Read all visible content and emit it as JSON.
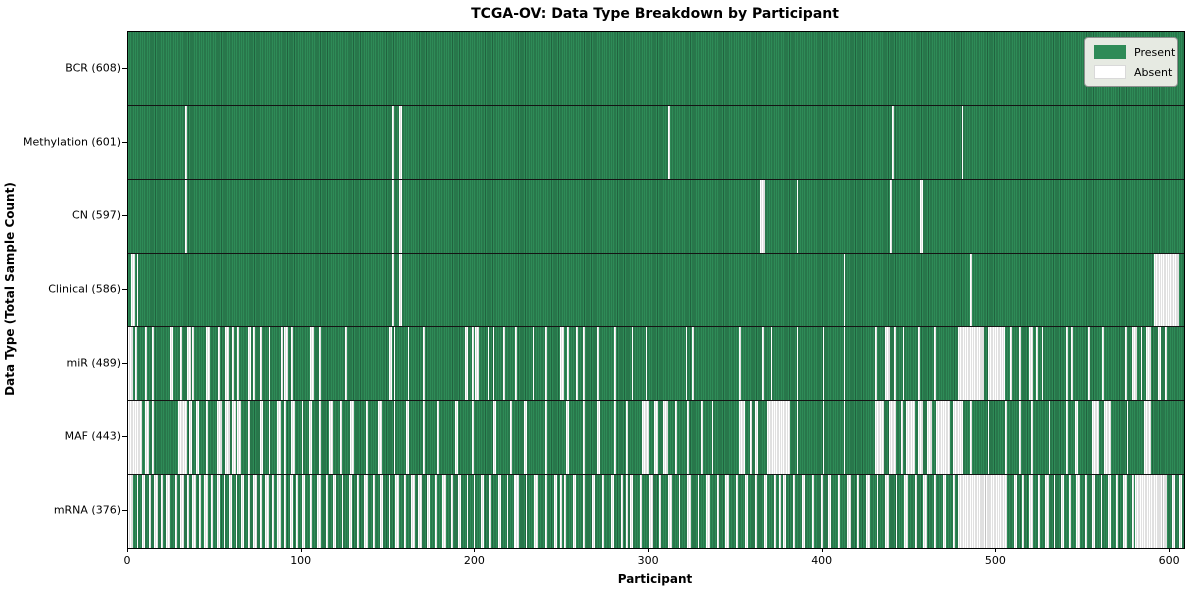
{
  "title": "TCGA-OV: Data Type Breakdown by Participant",
  "xlabel": "Participant",
  "ylabel": "Data Type (Total Sample Count)",
  "legend_labels": [
    "Present",
    "Absent"
  ],
  "colors": {
    "present": "#2e8b57",
    "present_edge": "#21633f",
    "absent": "#ffffff",
    "absent_edge": "#c2c2c2",
    "legend_bg": "#e6eae2"
  },
  "chart_data": {
    "type": "heatmap",
    "title": "TCGA-OV: Data Type Breakdown by Participant",
    "xlabel": "Participant",
    "ylabel": "Data Type (Total Sample Count)",
    "legend": [
      "Present",
      "Absent"
    ],
    "legend_position": "upper right",
    "x_ticks": [
      0,
      100,
      200,
      300,
      400,
      500,
      600
    ],
    "x_range": [
      0,
      608
    ],
    "n_participants": 608,
    "cell_states": [
      "present",
      "absent"
    ],
    "rows": [
      {
        "name": "BCR",
        "label": "BCR (608)",
        "present_count": 608,
        "absent_count": 0,
        "absent_segments": []
      },
      {
        "name": "Methylation",
        "label": "Methylation (601)",
        "present_count": 601,
        "absent_count": 7,
        "absent_segments": [
          [
            33,
            33
          ],
          [
            152,
            152
          ],
          [
            156,
            157
          ],
          [
            311,
            311
          ],
          [
            440,
            440
          ],
          [
            480,
            480
          ]
        ]
      },
      {
        "name": "CN",
        "label": "CN (597)",
        "present_count": 597,
        "absent_count": 11,
        "absent_segments": [
          [
            33,
            33
          ],
          [
            152,
            152
          ],
          [
            156,
            157
          ],
          [
            364,
            366
          ],
          [
            385,
            385
          ],
          [
            439,
            439
          ],
          [
            456,
            457
          ]
        ]
      },
      {
        "name": "Clinical",
        "label": "Clinical (586)",
        "present_count": 586,
        "absent_count": 22,
        "absent_segments": [
          [
            2,
            3
          ],
          [
            5,
            5
          ],
          [
            152,
            152
          ],
          [
            156,
            157
          ],
          [
            412,
            412
          ],
          [
            485,
            485
          ],
          [
            591,
            604
          ]
        ]
      },
      {
        "name": "miR",
        "label": "miR (489)",
        "present_count": 489,
        "absent_count": 119,
        "absent_segments": [
          [
            0,
            2
          ],
          [
            4,
            4
          ],
          [
            10,
            10
          ],
          [
            14,
            14
          ],
          [
            24,
            25
          ],
          [
            30,
            30
          ],
          [
            34,
            35
          ],
          [
            37,
            37
          ],
          [
            45,
            46
          ],
          [
            52,
            52
          ],
          [
            56,
            57
          ],
          [
            60,
            60
          ],
          [
            63,
            63
          ],
          [
            69,
            70
          ],
          [
            72,
            72
          ],
          [
            76,
            76
          ],
          [
            81,
            81
          ],
          [
            88,
            88
          ],
          [
            90,
            91
          ],
          [
            94,
            94
          ],
          [
            105,
            106
          ],
          [
            110,
            110
          ],
          [
            125,
            125
          ],
          [
            150,
            151
          ],
          [
            153,
            153
          ],
          [
            161,
            161
          ],
          [
            170,
            170
          ],
          [
            194,
            195
          ],
          [
            198,
            198
          ],
          [
            200,
            201
          ],
          [
            207,
            207
          ],
          [
            210,
            210
          ],
          [
            216,
            216
          ],
          [
            223,
            223
          ],
          [
            233,
            233
          ],
          [
            240,
            240
          ],
          [
            249,
            250
          ],
          [
            253,
            253
          ],
          [
            258,
            258
          ],
          [
            262,
            262
          ],
          [
            270,
            270
          ],
          [
            280,
            280
          ],
          [
            290,
            290
          ],
          [
            298,
            298
          ],
          [
            321,
            321
          ],
          [
            325,
            325
          ],
          [
            352,
            352
          ],
          [
            365,
            365
          ],
          [
            370,
            370
          ],
          [
            385,
            385
          ],
          [
            400,
            400
          ],
          [
            412,
            412
          ],
          [
            430,
            430
          ],
          [
            436,
            438
          ],
          [
            441,
            441
          ],
          [
            446,
            446
          ],
          [
            455,
            455
          ],
          [
            464,
            464
          ],
          [
            478,
            492
          ],
          [
            495,
            504
          ],
          [
            508,
            508
          ],
          [
            513,
            513
          ],
          [
            519,
            520
          ],
          [
            523,
            523
          ],
          [
            526,
            526
          ],
          [
            540,
            540
          ],
          [
            543,
            543
          ],
          [
            553,
            553
          ],
          [
            561,
            561
          ],
          [
            574,
            574
          ],
          [
            578,
            580
          ],
          [
            583,
            583
          ],
          [
            586,
            588
          ],
          [
            593,
            594
          ],
          [
            597,
            597
          ]
        ]
      },
      {
        "name": "MAF",
        "label": "MAF (443)",
        "present_count": 443,
        "absent_count": 165,
        "absent_segments": [
          [
            0,
            7
          ],
          [
            10,
            11
          ],
          [
            14,
            14
          ],
          [
            29,
            33
          ],
          [
            35,
            36
          ],
          [
            39,
            40
          ],
          [
            45,
            45
          ],
          [
            51,
            53
          ],
          [
            56,
            58
          ],
          [
            60,
            61
          ],
          [
            63,
            64
          ],
          [
            69,
            69
          ],
          [
            76,
            77
          ],
          [
            81,
            81
          ],
          [
            86,
            87
          ],
          [
            90,
            90
          ],
          [
            94,
            95
          ],
          [
            100,
            100
          ],
          [
            104,
            105
          ],
          [
            110,
            110
          ],
          [
            116,
            117
          ],
          [
            122,
            122
          ],
          [
            128,
            129
          ],
          [
            137,
            137
          ],
          [
            144,
            145
          ],
          [
            153,
            153
          ],
          [
            160,
            161
          ],
          [
            170,
            170
          ],
          [
            178,
            178
          ],
          [
            188,
            189
          ],
          [
            198,
            198
          ],
          [
            210,
            211
          ],
          [
            220,
            220
          ],
          [
            228,
            229
          ],
          [
            240,
            240
          ],
          [
            252,
            253
          ],
          [
            262,
            262
          ],
          [
            270,
            271
          ],
          [
            280,
            280
          ],
          [
            287,
            287
          ],
          [
            296,
            299
          ],
          [
            303,
            304
          ],
          [
            308,
            310
          ],
          [
            315,
            315
          ],
          [
            322,
            322
          ],
          [
            330,
            330
          ],
          [
            336,
            336
          ],
          [
            352,
            354
          ],
          [
            358,
            358
          ],
          [
            361,
            362
          ],
          [
            368,
            380
          ],
          [
            385,
            385
          ],
          [
            400,
            400
          ],
          [
            412,
            412
          ],
          [
            430,
            434
          ],
          [
            438,
            441
          ],
          [
            445,
            445
          ],
          [
            448,
            452
          ],
          [
            455,
            457
          ],
          [
            460,
            462
          ],
          [
            465,
            472
          ],
          [
            475,
            480
          ],
          [
            485,
            485
          ],
          [
            495,
            495
          ],
          [
            505,
            505
          ],
          [
            513,
            513
          ],
          [
            520,
            520
          ],
          [
            530,
            530
          ],
          [
            540,
            540
          ],
          [
            545,
            546
          ],
          [
            555,
            558
          ],
          [
            562,
            565
          ],
          [
            575,
            575
          ],
          [
            585,
            588
          ]
        ]
      },
      {
        "name": "mRNA",
        "label": "mRNA (376)",
        "present_count": 376,
        "absent_count": 232,
        "absent_segments": [
          [
            0,
            2
          ],
          [
            5,
            5
          ],
          [
            8,
            9
          ],
          [
            12,
            12
          ],
          [
            15,
            16
          ],
          [
            19,
            19
          ],
          [
            22,
            23
          ],
          [
            27,
            27
          ],
          [
            30,
            31
          ],
          [
            34,
            34
          ],
          [
            37,
            38
          ],
          [
            41,
            41
          ],
          [
            44,
            45
          ],
          [
            48,
            48
          ],
          [
            51,
            52
          ],
          [
            55,
            55
          ],
          [
            58,
            59
          ],
          [
            62,
            62
          ],
          [
            65,
            66
          ],
          [
            69,
            69
          ],
          [
            72,
            73
          ],
          [
            76,
            76
          ],
          [
            79,
            80
          ],
          [
            83,
            83
          ],
          [
            86,
            87
          ],
          [
            90,
            90
          ],
          [
            93,
            94
          ],
          [
            97,
            97
          ],
          [
            100,
            101
          ],
          [
            105,
            105
          ],
          [
            109,
            110
          ],
          [
            114,
            114
          ],
          [
            118,
            119
          ],
          [
            123,
            123
          ],
          [
            127,
            128
          ],
          [
            132,
            132
          ],
          [
            136,
            137
          ],
          [
            141,
            141
          ],
          [
            145,
            146
          ],
          [
            150,
            150
          ],
          [
            154,
            155
          ],
          [
            159,
            159
          ],
          [
            163,
            164
          ],
          [
            167,
            168
          ],
          [
            172,
            173
          ],
          [
            177,
            177
          ],
          [
            181,
            182
          ],
          [
            186,
            186
          ],
          [
            190,
            191
          ],
          [
            195,
            195
          ],
          [
            199,
            199
          ],
          [
            203,
            204
          ],
          [
            208,
            208
          ],
          [
            213,
            214
          ],
          [
            218,
            218
          ],
          [
            222,
            222
          ],
          [
            223,
            224
          ],
          [
            229,
            229
          ],
          [
            234,
            235
          ],
          [
            240,
            240
          ],
          [
            245,
            246
          ],
          [
            249,
            249
          ],
          [
            251,
            251
          ],
          [
            256,
            257
          ],
          [
            262,
            262
          ],
          [
            267,
            268
          ],
          [
            273,
            273
          ],
          [
            278,
            279
          ],
          [
            284,
            284
          ],
          [
            287,
            287
          ],
          [
            289,
            290
          ],
          [
            295,
            295
          ],
          [
            300,
            301
          ],
          [
            306,
            306
          ],
          [
            311,
            312
          ],
          [
            317,
            317
          ],
          [
            322,
            323
          ],
          [
            328,
            328
          ],
          [
            333,
            334
          ],
          [
            339,
            339
          ],
          [
            344,
            345
          ],
          [
            350,
            350
          ],
          [
            355,
            356
          ],
          [
            361,
            361
          ],
          [
            366,
            367
          ],
          [
            372,
            372
          ],
          [
            375,
            375
          ],
          [
            377,
            378
          ],
          [
            383,
            383
          ],
          [
            388,
            389
          ],
          [
            394,
            394
          ],
          [
            399,
            399
          ],
          [
            403,
            404
          ],
          [
            409,
            409
          ],
          [
            414,
            415
          ],
          [
            420,
            420
          ],
          [
            425,
            426
          ],
          [
            431,
            431
          ],
          [
            436,
            437
          ],
          [
            442,
            442
          ],
          [
            447,
            448
          ],
          [
            453,
            453
          ],
          [
            458,
            459
          ],
          [
            464,
            464
          ],
          [
            469,
            470
          ],
          [
            475,
            475
          ],
          [
            478,
            505
          ],
          [
            510,
            511
          ],
          [
            515,
            515
          ],
          [
            519,
            520
          ],
          [
            524,
            524
          ],
          [
            528,
            529
          ],
          [
            533,
            533
          ],
          [
            537,
            538
          ],
          [
            542,
            542
          ],
          [
            546,
            547
          ],
          [
            551,
            551
          ],
          [
            555,
            556
          ],
          [
            560,
            560
          ],
          [
            564,
            565
          ],
          [
            569,
            569
          ],
          [
            573,
            574
          ],
          [
            578,
            578
          ],
          [
            580,
            597
          ],
          [
            601,
            602
          ],
          [
            605,
            606
          ]
        ]
      }
    ]
  }
}
